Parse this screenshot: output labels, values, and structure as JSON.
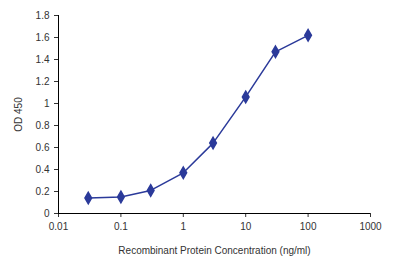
{
  "chart_data": {
    "type": "line",
    "x_label": "Recombinant Protein Concentration (ng/ml)",
    "y_label": "OD 450",
    "x": [
      0.03,
      0.1,
      0.3,
      1,
      3,
      10,
      30,
      100
    ],
    "values": [
      0.14,
      0.15,
      0.21,
      0.37,
      0.64,
      1.06,
      1.47,
      1.62
    ],
    "color": "#2b3a9a",
    "marker": "diamond",
    "log": "x",
    "grid": false,
    "xlim": [
      0.01,
      1000
    ],
    "xticks": [
      0.01,
      0.1,
      1,
      10,
      100,
      1000
    ],
    "ylim": [
      0,
      1.8
    ],
    "yticks": [
      0,
      0.2,
      0.4,
      0.6,
      0.8,
      1,
      1.2,
      1.4,
      1.6,
      1.8
    ]
  }
}
